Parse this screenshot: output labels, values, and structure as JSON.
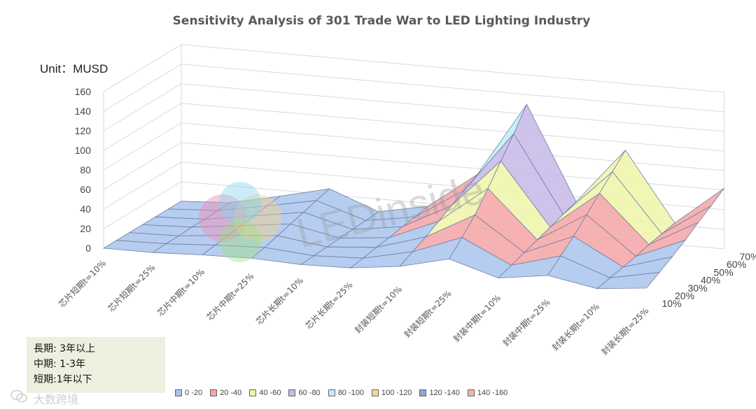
{
  "chart_data": {
    "type": "surface",
    "title": "Sensitivity Analysis of 301 Trade War to LED Lighting Industry",
    "unit_label": "Unit：MUSD",
    "zlim": [
      0,
      160
    ],
    "z_ticks": [
      "0",
      "20",
      "40",
      "60",
      "80",
      "100",
      "120",
      "140",
      "160"
    ],
    "categories": [
      "芯片短期t=10%",
      "芯片短期t=25%",
      "芯片中期t=10%",
      "芯片中期t=25%",
      "芯片长期t=10%",
      "芯片长期t=25%",
      "封装短期t=10%",
      "封装短期t=25%",
      "封装中期t=10%",
      "封装中期t=25%",
      "封装长期t=10%",
      "封装长期t=25%"
    ],
    "depth_categories": [
      "10%",
      "20%",
      "30%",
      "40%",
      "50%",
      "60%",
      "70%"
    ],
    "legend": [
      {
        "label": "0 -20",
        "color": "#a9c4ec"
      },
      {
        "label": "20 -40",
        "color": "#f4a5a5"
      },
      {
        "label": "40 -60",
        "color": "#eef4a8"
      },
      {
        "label": "60 -80",
        "color": "#c7b8e8"
      },
      {
        "label": "80 -100",
        "color": "#bdeef8"
      },
      {
        "label": "100 -120",
        "color": "#fcd49c"
      },
      {
        "label": "120 -140",
        "color": "#8fa6d8"
      },
      {
        "label": "140 -160",
        "color": "#f0b7aa"
      }
    ],
    "series": [
      {
        "name": "10%",
        "values": [
          0,
          0,
          2,
          3,
          1,
          2,
          8,
          20,
          5,
          12,
          3,
          8
        ]
      },
      {
        "name": "20%",
        "values": [
          0,
          1,
          4,
          6,
          2,
          4,
          15,
          34,
          10,
          24,
          6,
          16
        ]
      },
      {
        "name": "30%",
        "values": [
          0,
          1,
          6,
          10,
          3,
          7,
          22,
          49,
          15,
          36,
          9,
          24
        ]
      },
      {
        "name": "40%",
        "values": [
          0,
          2,
          8,
          14,
          4,
          9,
          30,
          68,
          20,
          50,
          12,
          33
        ]
      },
      {
        "name": "50%",
        "values": [
          0,
          2,
          10,
          18,
          5,
          12,
          38,
          88,
          25,
          64,
          16,
          43
        ]
      },
      {
        "name": "60%",
        "values": [
          0,
          3,
          12,
          22,
          6,
          14,
          46,
          108,
          30,
          78,
          19,
          52
        ]
      },
      {
        "name": "70%",
        "values": [
          0,
          3,
          14,
          26,
          7,
          17,
          54,
          130,
          35,
          92,
          22,
          62
        ]
      }
    ]
  },
  "notes": [
    "長期: 3年以上",
    "中期: 1-3年",
    "短期:1年以下"
  ],
  "watermark": {
    "brand": "LEDinside",
    "account": "大数跨境"
  }
}
